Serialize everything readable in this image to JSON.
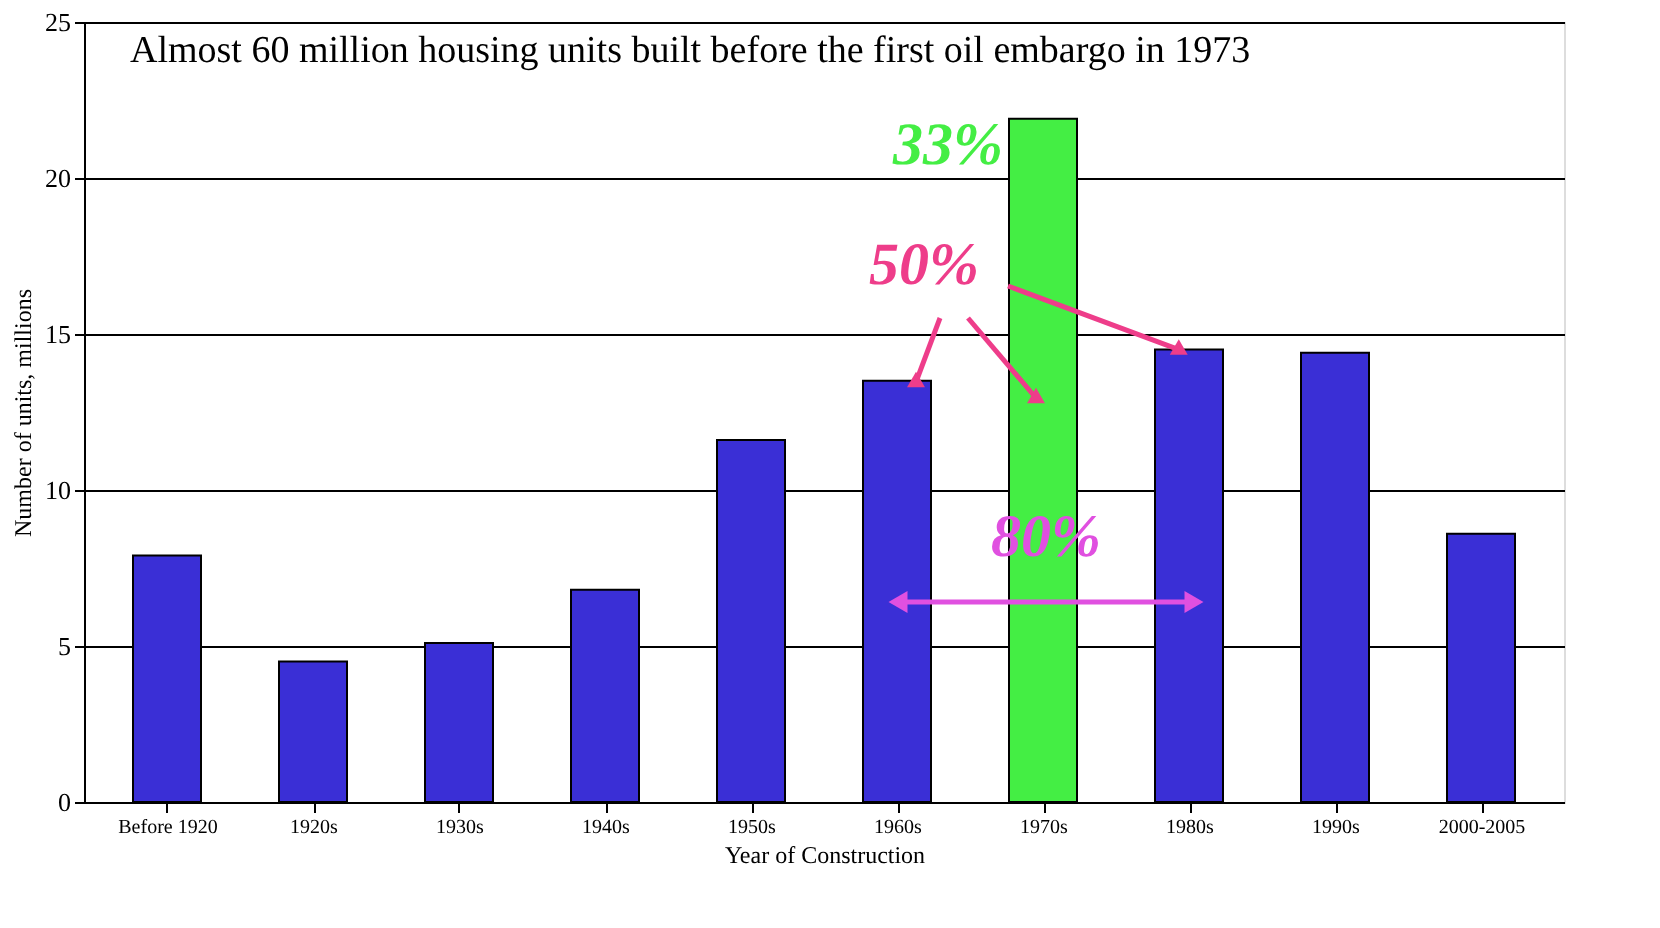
{
  "chart_data": {
    "type": "bar",
    "title": "Almost 60 million housing units built before the first oil embargo in 1973",
    "categories": [
      "Before 1920",
      "1920s",
      "1930s",
      "1940s",
      "1950s",
      "1960s",
      "1970s",
      "1980s",
      "1990s",
      "2000-2005"
    ],
    "values": [
      7.9,
      4.5,
      5.1,
      6.8,
      11.6,
      13.5,
      21.9,
      14.5,
      14.4,
      8.6
    ],
    "colors": [
      "#3a2fd6",
      "#3a2fd6",
      "#3a2fd6",
      "#3a2fd6",
      "#3a2fd6",
      "#3a2fd6",
      "#44ee44",
      "#3a2fd6",
      "#3a2fd6",
      "#3a2fd6"
    ],
    "xlabel": "Year of Construction",
    "ylabel": "Number of units, millions",
    "ylim": [
      0,
      25
    ],
    "yticks": [
      0,
      5,
      10,
      15,
      20,
      25
    ],
    "grid": "y",
    "annotations": [
      "33%",
      {
        "text": "50%",
        "x": "1980s",
        "y": 14.5
      },
      "80%"
    ]
  }
}
